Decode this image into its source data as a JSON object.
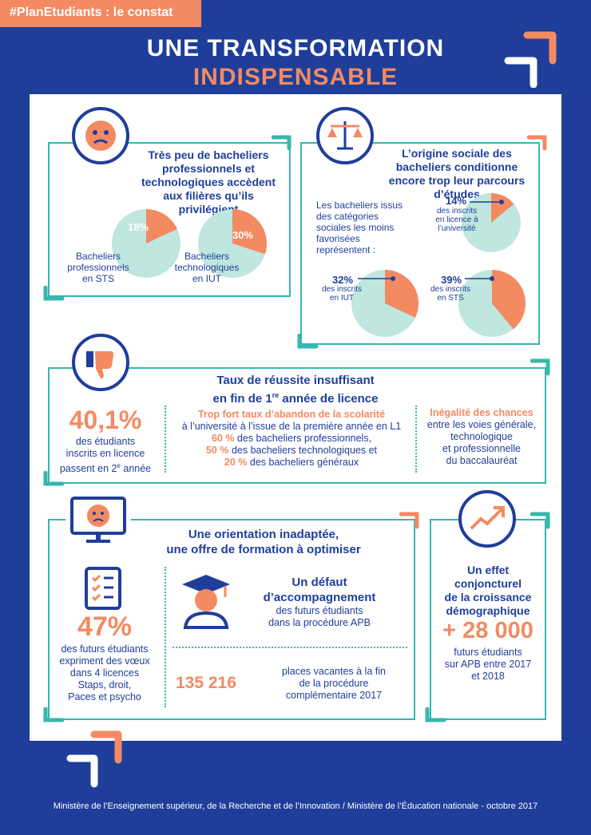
{
  "tag": "#PlanEtudiants : le constat",
  "title_line1": "UNE TRANSFORMATION",
  "title_line2": "INDISPENSABLE",
  "section1": {
    "title": "Très peu de bacheliers professionnels et technologiques accèdent aux filières qu’ils privilégient",
    "pie1": {
      "value": 18,
      "label_pct": "18%",
      "label": "Bacheliers professionnels en STS"
    },
    "pie2": {
      "value": 30,
      "label_pct": "30%",
      "label": "Bacheliers technologiques en IUT"
    }
  },
  "section2": {
    "title": "L’origine sociale des bacheliers conditionne encore trop leur parcours d’études",
    "intro": "Les bacheliers issus des catégories sociales les moins favorisées représentent :",
    "pie1": {
      "value": 14,
      "label_pct": "14%",
      "label": "des inscrits en licence à l’université"
    },
    "pie2": {
      "value": 32,
      "label_pct": "32%",
      "label": "des inscrits en IUT"
    },
    "pie3": {
      "value": 39,
      "label_pct": "39%",
      "label": "des inscrits en STS"
    }
  },
  "section3": {
    "title_l1": "Taux de réussite insuffisant",
    "title_l2_a": "en fin de 1",
    "title_l2_sup": "re",
    "title_l2_b": " année de licence",
    "big": "40,1%",
    "big_l1": "des étudiants",
    "big_l2": "inscrits en licence",
    "big_l3a": "passent en 2",
    "big_l3sup": "e",
    "big_l3b": " année",
    "mid_title": "Trop fort taux d’abandon de la scolarité",
    "mid_l1": "à l’université à l’issue de la première année en L1",
    "mid_p1": "60 %",
    "mid_t1": " des bacheliers professionnels,",
    "mid_p2": "50 %",
    "mid_t2": " des bacheliers technologiques et",
    "mid_p3": "20 %",
    "mid_t3": " des bacheliers généraux",
    "right_title": "Inégalité des chances",
    "right_l1": "entre les voies générale,",
    "right_l2": "technologique",
    "right_l3": "et professionnelle",
    "right_l4": "du baccalauréat"
  },
  "section4": {
    "title_l1": "Une orientation inadaptée,",
    "title_l2": "une offre de formation à optimiser",
    "big": "47%",
    "big_l1": "des futurs étudiants",
    "big_l2": "expriment des vœux",
    "big_l3": "dans 4 licences",
    "big_l4": "Staps, droit,",
    "big_l5": "Paces et psycho",
    "defaut_l1": "Un défaut",
    "defaut_l2": "d’accompagnement",
    "defaut_l3": "des futurs étudiants",
    "defaut_l4": "dans la procédure APB",
    "num": "135 216",
    "num_l1": "places vacantes à la fin",
    "num_l2": "de la procédure",
    "num_l3": "complémentaire 2017"
  },
  "section5": {
    "title_l1": "Un effet",
    "title_l2": "conjoncturel",
    "title_l3": "de la croissance",
    "title_l4": "démographique",
    "big": "+ 28 000",
    "l1": "futurs étudiants",
    "l2": "sur APB entre 2017",
    "l3": "et 2018"
  },
  "footer": "Ministère de l’Enseignement supérieur, de la Recherche et de l’Innovation / Ministère de l’Éducation nationale - octobre 2017",
  "colors": {
    "navy": "#1f3e9a",
    "orange": "#f38a62",
    "teal": "#35b8ad",
    "pie_bg": "#bfe6df"
  }
}
